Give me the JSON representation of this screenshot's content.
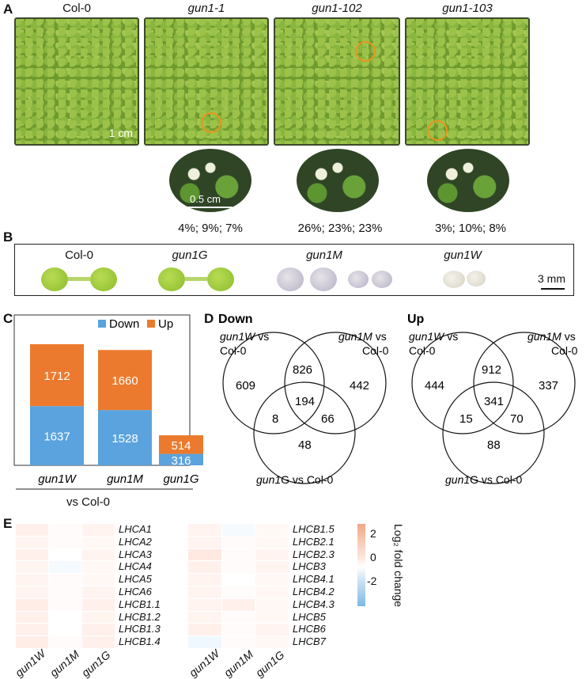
{
  "panelA": {
    "letter": "A",
    "plates": [
      {
        "label": "Col-0"
      },
      {
        "label": "gun1-1"
      },
      {
        "label": "gun1-102"
      },
      {
        "label": "gun1-103"
      }
    ],
    "scale_plate": "1 cm",
    "scale_zoom": "0.5 cm",
    "percentages": [
      "4%; 9%; 7%",
      "26%; 23%; 23%",
      "3%; 10%; 8%"
    ]
  },
  "panelB": {
    "letter": "B",
    "labels": [
      "Col-0",
      "gun1G",
      "gun1M",
      "gun1W"
    ],
    "scale": "3 mm"
  },
  "panelC": {
    "letter": "C",
    "legend_down": "Down",
    "legend_up": "Up",
    "xcaption": "vs Col-0",
    "colors": {
      "down": "#5ba3de",
      "up": "#ec7a2e"
    }
  },
  "panelD": {
    "letter": "D",
    "down": {
      "title": "Down",
      "label_w1": "gun1W",
      "label_w2": " vs",
      "label_w3": "Col-0",
      "label_m1": "gun1M",
      "label_m2": " vs",
      "label_m3": "Col-0",
      "label_g1": "gun1",
      "label_g2": "G vs Col-0",
      "n_w": "609",
      "n_wm": "826",
      "n_m": "442",
      "n_wmg": "194",
      "n_wg": "8",
      "n_mg": "66",
      "n_g": "48"
    },
    "up": {
      "title": "Up",
      "label_w1": "gun1W",
      "label_w2": " vs",
      "label_w3": "Col-0",
      "label_m1": "gun1M",
      "label_m2": " vs",
      "label_m3": "Col-0",
      "label_g1": "gun1",
      "label_g2": "G vs Col-0",
      "n_w": "444",
      "n_wm": "912",
      "n_m": "337",
      "n_wmg": "341",
      "n_wg": "15",
      "n_mg": "70",
      "n_g": "88"
    }
  },
  "panelE": {
    "letter": "E",
    "columns": [
      "gun1W",
      "gun1M",
      "gun1G"
    ],
    "genes_left": [
      "LHCA1",
      "LHCA2",
      "LHCA3",
      "LHCA4",
      "LHCA5",
      "LHCA6",
      "LHCB1.1",
      "LHCB1.2",
      "LHCB1.3",
      "LHCB1.4"
    ],
    "genes_right": [
      "LHCB1.5",
      "LHCB2.1",
      "LHCB2.3",
      "LHCB3",
      "LHCB4.1",
      "LHCB4.2",
      "LHCB4.3",
      "LHCB5",
      "LHCB6",
      "LHCB7"
    ],
    "colorbar_title": "Log₂ fold change",
    "colorbar_ticks": [
      "2",
      "0",
      "-2"
    ]
  },
  "chart_data": [
    {
      "type": "bar",
      "stacked": true,
      "categories": [
        "gun1W",
        "gun1M",
        "gun1G"
      ],
      "series": [
        {
          "name": "Down",
          "values": [
            1637,
            1528,
            316
          ]
        },
        {
          "name": "Up",
          "values": [
            1712,
            1660,
            514
          ]
        }
      ],
      "xlabel": "vs Col-0",
      "legend": "top-right"
    },
    {
      "type": "heatmap",
      "columns": [
        "gun1W",
        "gun1M",
        "gun1G"
      ],
      "rows": [
        "LHCA1",
        "LHCA2",
        "LHCA3",
        "LHCA4",
        "LHCA5",
        "LHCA6",
        "LHCB1.1",
        "LHCB1.2",
        "LHCB1.3",
        "LHCB1.4"
      ],
      "values": [
        [
          0.4,
          0.1,
          0.3
        ],
        [
          0.3,
          0.1,
          0.2
        ],
        [
          0.4,
          0.0,
          0.3
        ],
        [
          0.3,
          -0.2,
          0.2
        ],
        [
          0.3,
          0.1,
          0.2
        ],
        [
          0.3,
          0.1,
          0.3
        ],
        [
          0.5,
          0.1,
          0.4
        ],
        [
          0.4,
          0.0,
          0.3
        ],
        [
          0.4,
          0.0,
          0.4
        ],
        [
          0.5,
          0.1,
          0.4
        ]
      ],
      "range": [
        -3,
        3
      ]
    },
    {
      "type": "heatmap",
      "columns": [
        "gun1W",
        "gun1M",
        "gun1G"
      ],
      "rows": [
        "LHCB1.5",
        "LHCB2.1",
        "LHCB2.3",
        "LHCB3",
        "LHCB4.1",
        "LHCB4.2",
        "LHCB4.3",
        "LHCB5",
        "LHCB6",
        "LHCB7"
      ],
      "values": [
        [
          0.3,
          -0.2,
          0.2
        ],
        [
          0.3,
          0.1,
          0.2
        ],
        [
          0.6,
          0.1,
          0.3
        ],
        [
          0.4,
          0.1,
          0.3
        ],
        [
          0.3,
          0.0,
          0.2
        ],
        [
          0.3,
          0.1,
          0.2
        ],
        [
          0.3,
          0.4,
          0.2
        ],
        [
          0.3,
          0.1,
          0.2
        ],
        [
          0.4,
          0.1,
          0.3
        ],
        [
          -0.3,
          0.1,
          0.2
        ]
      ],
      "range": [
        -3,
        3
      ]
    }
  ]
}
